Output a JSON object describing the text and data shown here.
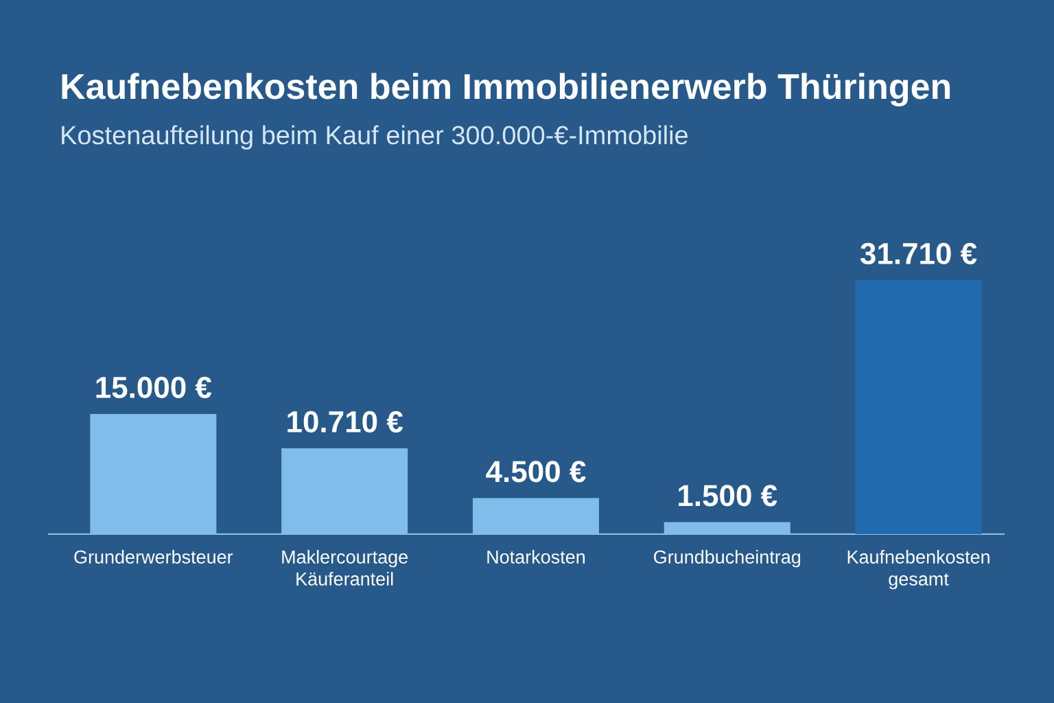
{
  "chart_data": {
    "type": "bar",
    "title": "Kaufnebenkosten beim Immobilienerwerb Thüringen",
    "subtitle": "Kostenaufteilung beim Kauf einer 300.000-€-Immobilie",
    "categories": [
      "Grunderwerbsteuer",
      "Maklercourtage Käuferanteil",
      "Notarkosten",
      "Grundbucheintrag",
      "Kaufnebenkosten gesamt"
    ],
    "values": [
      15000,
      10710,
      4500,
      1500,
      31710
    ],
    "colors": [
      "#80bdea",
      "#80bdea",
      "#80bdea",
      "#80bdea",
      "#216aad"
    ],
    "value_labels": [
      "15.000 €",
      "10.710 €",
      "4.500 €",
      "1.500 €",
      "31.710 €"
    ]
  }
}
